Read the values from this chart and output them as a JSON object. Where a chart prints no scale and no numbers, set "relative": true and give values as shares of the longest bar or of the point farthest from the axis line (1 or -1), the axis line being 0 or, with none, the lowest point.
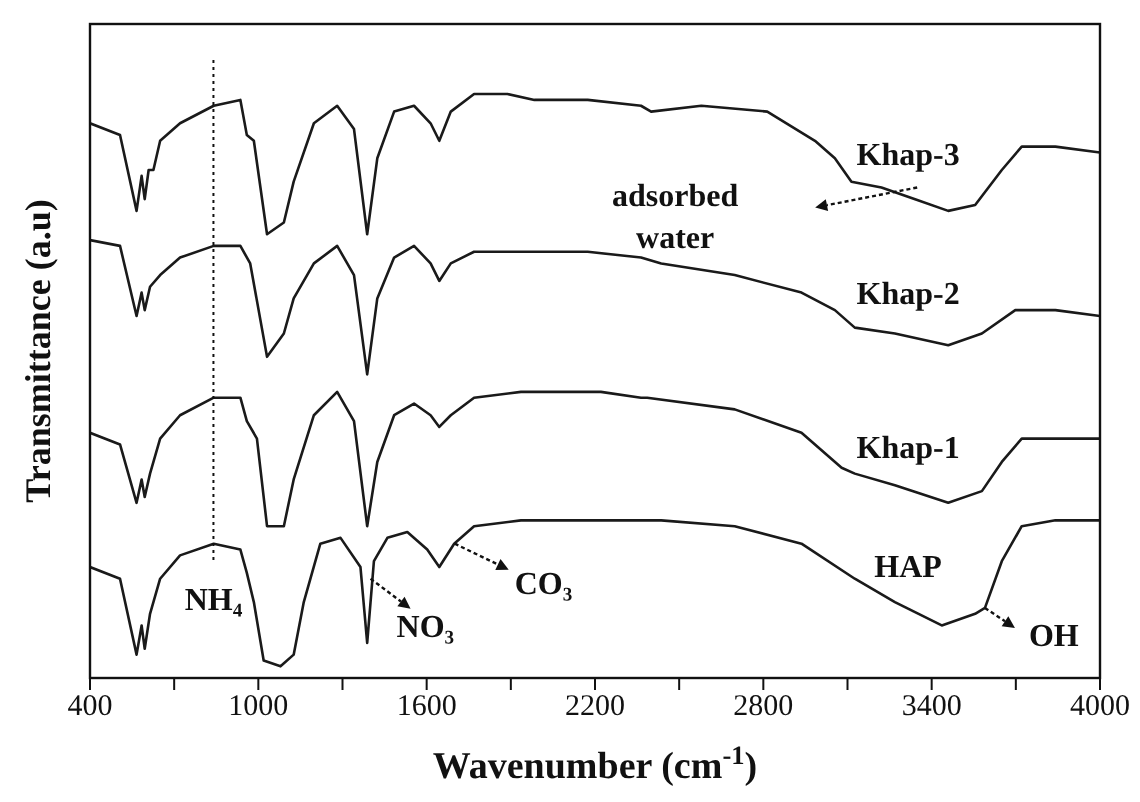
{
  "chart_data": {
    "type": "line",
    "relative": true,
    "xlabel": "Wavenumber (cm$^{-1}$)",
    "ylabel": "Transmittance (a.u)",
    "xlim": [
      400,
      4000
    ],
    "xticks": [
      400,
      {
        "value": 700,
        "label": null
      },
      1000,
      {
        "value": 1300,
        "label": null
      },
      1600,
      {
        "value": 1900,
        "label": null
      },
      2200,
      {
        "value": 2500,
        "label": null
      },
      2800,
      {
        "value": 3100,
        "label": null
      },
      3400,
      {
        "value": 3700,
        "label": null
      },
      4000
    ],
    "series": [
      {
        "name": "Khap-3",
        "color": "#1a1a1a",
        "x": [
          400,
          507,
          566,
          584,
          595,
          609,
          626,
          650,
          721,
          841,
          936,
          959,
          984,
          1031,
          1091,
          1126,
          1198,
          1281,
          1341,
          1388,
          1424,
          1484,
          1555,
          1614,
          1645,
          1686,
          1769,
          1888,
          1984,
          2174,
          2364,
          2400,
          2579,
          2814,
          2984,
          3055,
          3114,
          3221,
          3341,
          3459,
          3555,
          3650,
          3721,
          3841,
          4000
        ],
        "values": [
          0.95,
          0.93,
          0.8,
          0.86,
          0.82,
          0.87,
          0.87,
          0.92,
          0.95,
          0.98,
          0.99,
          0.93,
          0.92,
          0.76,
          0.78,
          0.85,
          0.95,
          0.98,
          0.94,
          0.76,
          0.89,
          0.97,
          0.98,
          0.95,
          0.92,
          0.97,
          1.0,
          1.0,
          0.99,
          0.99,
          0.98,
          0.97,
          0.98,
          0.97,
          0.92,
          0.89,
          0.85,
          0.84,
          0.82,
          0.8,
          0.81,
          0.87,
          0.91,
          0.91,
          0.9
        ]
      },
      {
        "name": "Khap-2",
        "color": "#1a1a1a",
        "x": [
          400,
          507,
          566,
          584,
          595,
          614,
          650,
          721,
          841,
          936,
          971,
          1031,
          1091,
          1126,
          1198,
          1281,
          1341,
          1388,
          1424,
          1484,
          1555,
          1614,
          1645,
          1686,
          1769,
          1888,
          2174,
          2364,
          2436,
          2698,
          2936,
          3055,
          3126,
          3269,
          3459,
          3579,
          3698,
          3841,
          4000
        ],
        "values": [
          0.75,
          0.74,
          0.62,
          0.66,
          0.63,
          0.67,
          0.69,
          0.72,
          0.74,
          0.74,
          0.71,
          0.55,
          0.59,
          0.65,
          0.71,
          0.74,
          0.69,
          0.52,
          0.65,
          0.72,
          0.74,
          0.71,
          0.68,
          0.71,
          0.73,
          0.73,
          0.73,
          0.72,
          0.71,
          0.69,
          0.66,
          0.63,
          0.6,
          0.59,
          0.57,
          0.59,
          0.63,
          0.63,
          0.62
        ]
      },
      {
        "name": "Khap-1",
        "color": "#1a1a1a",
        "x": [
          400,
          507,
          566,
          584,
          595,
          614,
          650,
          721,
          841,
          936,
          959,
          995,
          1031,
          1091,
          1126,
          1198,
          1281,
          1341,
          1388,
          1424,
          1484,
          1555,
          1614,
          1645,
          1686,
          1769,
          1936,
          2221,
          2364,
          2386,
          2698,
          2936,
          3079,
          3126,
          3269,
          3459,
          3579,
          3650,
          3721,
          3841,
          4000
        ],
        "values": [
          0.42,
          0.4,
          0.3,
          0.34,
          0.31,
          0.35,
          0.41,
          0.45,
          0.48,
          0.48,
          0.44,
          0.41,
          0.26,
          0.26,
          0.34,
          0.45,
          0.49,
          0.44,
          0.26,
          0.37,
          0.45,
          0.47,
          0.45,
          0.43,
          0.45,
          0.48,
          0.49,
          0.49,
          0.48,
          0.48,
          0.46,
          0.42,
          0.36,
          0.35,
          0.33,
          0.3,
          0.32,
          0.37,
          0.41,
          0.41,
          0.41
        ]
      },
      {
        "name": "HAP",
        "color": "#1a1a1a",
        "x": [
          400,
          507,
          566,
          584,
          595,
          614,
          650,
          721,
          841,
          936,
          959,
          984,
          1019,
          1079,
          1126,
          1162,
          1221,
          1293,
          1364,
          1388,
          1412,
          1460,
          1531,
          1602,
          1645,
          1698,
          1769,
          1936,
          2364,
          2436,
          2698,
          2936,
          3126,
          3269,
          3436,
          3555,
          3590,
          3650,
          3721,
          3841,
          4000
        ],
        "values": [
          0.19,
          0.17,
          0.04,
          0.09,
          0.05,
          0.11,
          0.17,
          0.21,
          0.23,
          0.22,
          0.18,
          0.13,
          0.03,
          0.02,
          0.04,
          0.13,
          0.23,
          0.24,
          0.19,
          0.06,
          0.2,
          0.24,
          0.25,
          0.22,
          0.19,
          0.23,
          0.26,
          0.27,
          0.27,
          0.27,
          0.26,
          0.23,
          0.17,
          0.13,
          0.09,
          0.11,
          0.12,
          0.2,
          0.26,
          0.27,
          0.27
        ]
      }
    ],
    "ref_lines": [
      {
        "axis": "x",
        "value": 840,
        "label": "NH₄",
        "line_style": "dotted"
      }
    ],
    "annotations": [
      "adsorbed water",
      {
        "text": "NO₃",
        "x": 1400,
        "y": 0.17
      },
      {
        "text": "CO₃",
        "x": 1700,
        "y": 0.23
      },
      {
        "text": "OH",
        "x": 3590,
        "y": 0.12
      }
    ]
  }
}
